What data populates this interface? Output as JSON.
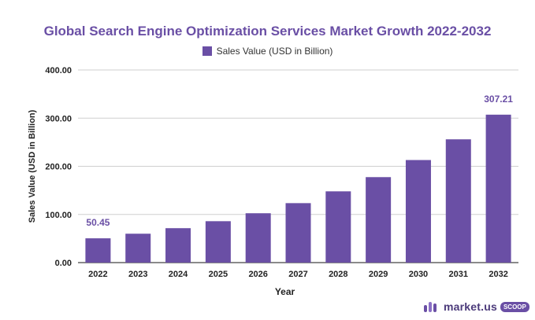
{
  "chart_data": {
    "type": "bar",
    "title": "Global Search Engine Optimization Services Market Growth 2022-2032",
    "xlabel": "Year",
    "ylabel": "Sales Value (USD in Billion)",
    "ylim": [
      0,
      400
    ],
    "yticks": [
      "0.00",
      "100.00",
      "200.00",
      "300.00",
      "400.00"
    ],
    "grid": true,
    "legend_position": "top-center",
    "categories": [
      "2022",
      "2023",
      "2024",
      "2025",
      "2026",
      "2027",
      "2028",
      "2029",
      "2030",
      "2031",
      "2032"
    ],
    "series": [
      {
        "name": "Sales Value (USD in Billion)",
        "color": "#6a4fa5",
        "values": [
          50.45,
          60.0,
          71.5,
          86.0,
          102.5,
          123.5,
          148.0,
          177.5,
          213.0,
          256.0,
          307.21
        ]
      }
    ],
    "data_labels": [
      {
        "index": 0,
        "text": "50.45"
      },
      {
        "index": 10,
        "text": "307.21"
      }
    ]
  },
  "logo": {
    "text": "market.us",
    "badge": "SCOOP"
  }
}
